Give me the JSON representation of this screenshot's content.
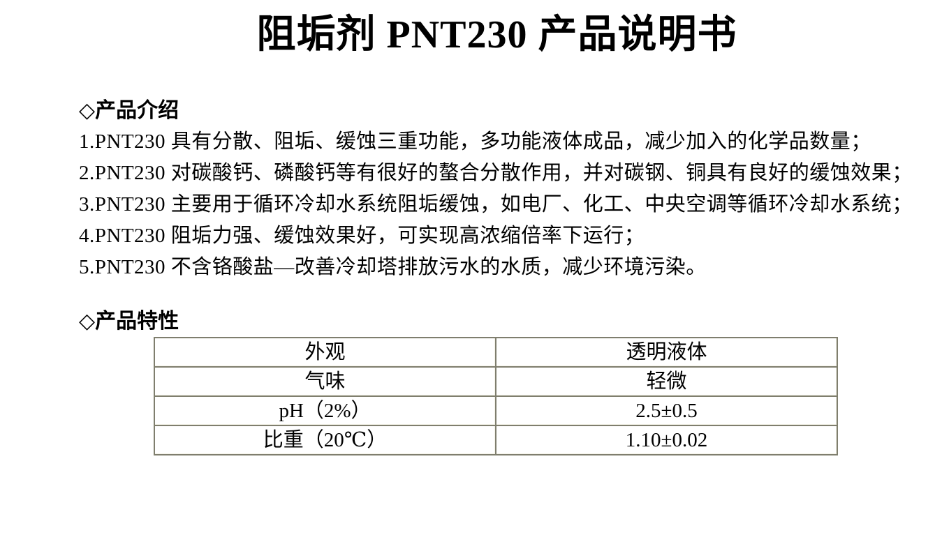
{
  "document": {
    "title": "阻垢剂 PNT230 产品说明书"
  },
  "intro": {
    "heading": "◇产品介绍",
    "items": [
      "1.PNT230 具有分散、阻垢、缓蚀三重功能，多功能液体成品，减少加入的化学品数量；",
      "2.PNT230 对碳酸钙、磷酸钙等有很好的螯合分散作用，并对碳钢、铜具有良好的缓蚀效果；",
      "3.PNT230 主要用于循环冷却水系统阻垢缓蚀，如电厂、化工、中央空调等循环冷却水系统；",
      "4.PNT230 阻垢力强、缓蚀效果好，可实现高浓缩倍率下运行；",
      "5.PNT230 不含铬酸盐—改善冷却塔排放污水的水质，减少环境污染。"
    ]
  },
  "properties": {
    "heading": "◇产品特性",
    "table": {
      "rows": [
        {
          "label": "外观",
          "value": "透明液体"
        },
        {
          "label": "气味",
          "value": "轻微"
        },
        {
          "label": "pH（2%）",
          "value": "2.5±0.5"
        },
        {
          "label": "比重（20℃）",
          "value": "1.10±0.02"
        }
      ]
    }
  },
  "colors": {
    "background": "#ffffff",
    "text": "#000000",
    "table_border": "#7f7e6e"
  }
}
